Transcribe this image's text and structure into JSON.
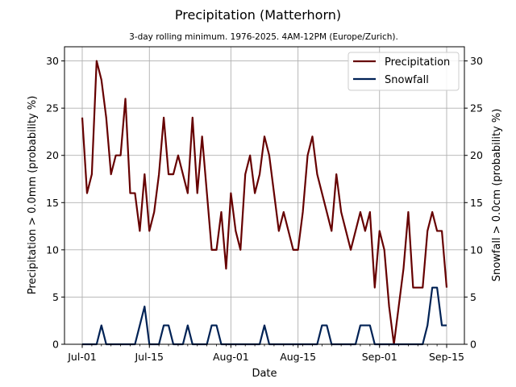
{
  "chart_data": {
    "type": "line",
    "title": "Precipitation (Matterhorn)",
    "subtitle": "3-day rolling minimum. 1976-2025. 4AM-12PM (Europe/Zurich).",
    "xlabel": "Date",
    "ylabel_left": "Precipitation > 0.0mm (probability %)",
    "ylabel_right": "Snowfall > 0.0cm (probability %)",
    "ylim": [
      0,
      31.5
    ],
    "yticks": [
      0,
      5,
      10,
      15,
      20,
      25,
      30
    ],
    "x_start": "2025-07-01",
    "x_end": "2025-09-15",
    "xticks": [
      {
        "label": "Jul-01",
        "date": "2025-07-01"
      },
      {
        "label": "Jul-15",
        "date": "2025-07-15"
      },
      {
        "label": "Aug-01",
        "date": "2025-08-01"
      },
      {
        "label": "Aug-15",
        "date": "2025-08-15"
      },
      {
        "label": "Sep-01",
        "date": "2025-09-01"
      },
      {
        "label": "Sep-15",
        "date": "2025-09-15"
      }
    ],
    "grid": true,
    "legend_position": "top-right",
    "series": [
      {
        "name": "Precipitation",
        "color": "#660000",
        "axis": "left",
        "values": [
          24,
          16,
          18,
          30,
          28,
          24,
          18,
          20,
          20,
          26,
          16,
          16,
          12,
          18,
          12,
          14,
          18,
          24,
          18,
          18,
          20,
          18,
          16,
          24,
          16,
          22,
          16,
          10,
          10,
          14,
          8,
          16,
          12,
          10,
          18,
          20,
          16,
          18,
          22,
          20,
          16,
          12,
          14,
          12,
          10,
          10,
          14,
          20,
          22,
          18,
          16,
          14,
          12,
          18,
          14,
          12,
          10,
          12,
          14,
          12,
          14,
          6,
          12,
          10,
          4,
          0,
          4,
          8,
          14,
          6,
          6,
          6,
          12,
          14,
          12,
          12,
          6
        ]
      },
      {
        "name": "Snowfall",
        "color": "#002255",
        "axis": "right",
        "values": [
          0,
          0,
          0,
          0,
          2,
          0,
          0,
          0,
          0,
          0,
          0,
          0,
          2,
          4,
          0,
          0,
          0,
          2,
          2,
          0,
          0,
          0,
          2,
          0,
          0,
          0,
          0,
          2,
          2,
          0,
          0,
          0,
          0,
          0,
          0,
          0,
          0,
          0,
          2,
          0,
          0,
          0,
          0,
          0,
          0,
          0,
          0,
          0,
          0,
          0,
          2,
          2,
          0,
          0,
          0,
          0,
          0,
          0,
          2,
          2,
          2,
          0,
          0,
          0,
          0,
          0,
          0,
          0,
          0,
          0,
          0,
          0,
          2,
          6,
          6,
          2,
          2
        ]
      }
    ]
  }
}
